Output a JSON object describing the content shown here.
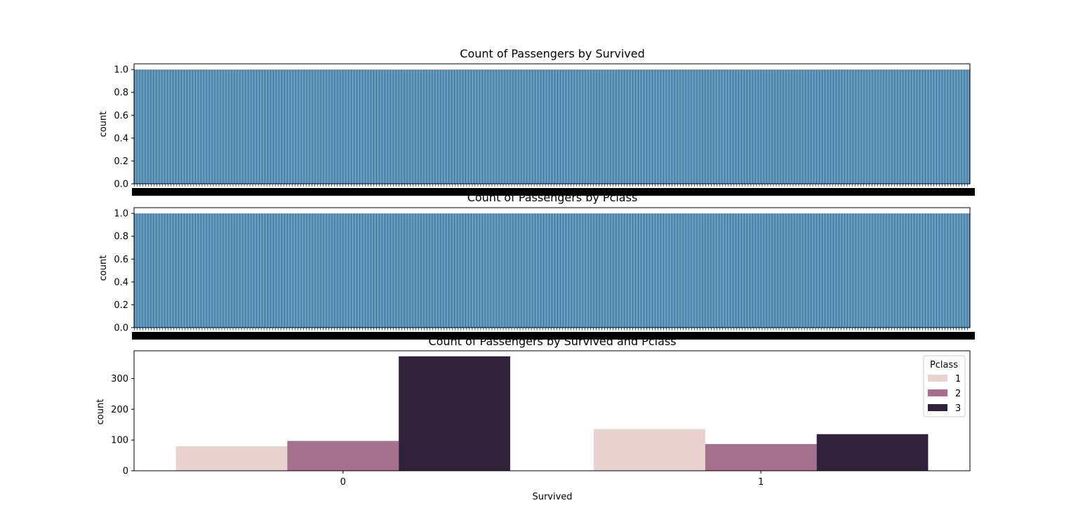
{
  "chart_data": [
    {
      "type": "bar",
      "title": "Count of Passengers by Survived",
      "xlabel": "",
      "ylabel": "count",
      "ylim": [
        0,
        1.05
      ],
      "yticks": [
        "0.0",
        "0.2",
        "0.4",
        "0.6",
        "0.8",
        "1.0"
      ],
      "xtick_labels_overlapping": true,
      "num_categories": 891,
      "bar_value": 1.0,
      "bar_color": "#3274a1",
      "grid": false
    },
    {
      "type": "bar",
      "title": "Count of Passengers by Pclass",
      "xlabel": "",
      "ylabel": "count",
      "ylim": [
        0,
        1.05
      ],
      "yticks": [
        "0.0",
        "0.2",
        "0.4",
        "0.6",
        "0.8",
        "1.0"
      ],
      "xtick_labels_overlapping": true,
      "num_categories": 891,
      "bar_value": 1.0,
      "bar_color": "#3274a1",
      "grid": false
    },
    {
      "type": "bar",
      "title": "Count of Passengers by Survived and Pclass",
      "xlabel": "Survived",
      "ylabel": "count",
      "ylim": [
        0,
        390
      ],
      "yticks": [
        0,
        100,
        200,
        300
      ],
      "categories": [
        "0",
        "1"
      ],
      "legend": {
        "title": "Pclass",
        "location": "upper right"
      },
      "series": [
        {
          "name": "1",
          "values": [
            80,
            136
          ],
          "color": "#ead3ce"
        },
        {
          "name": "2",
          "values": [
            97,
            87
          ],
          "color": "#a4708e"
        },
        {
          "name": "3",
          "values": [
            372,
            119
          ],
          "color": "#30223b"
        }
      ],
      "grid": false
    }
  ]
}
